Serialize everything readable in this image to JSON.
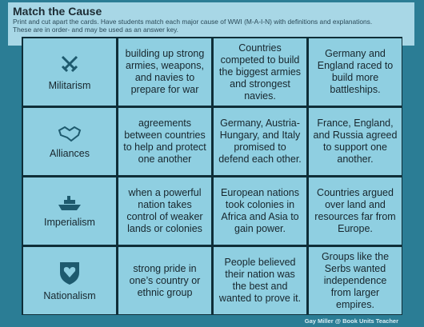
{
  "header": {
    "title": "Match the Cause",
    "instructions": [
      "Print and cut apart the cards. Have students match each major cause of WWI (M-A-I-N) with definitions and explanations.",
      "These are in order- and may be used as an answer key."
    ]
  },
  "rows": [
    {
      "label": "Militarism",
      "definition": "building up strong armies, weapons, and navies to prepare for war",
      "explanation": "Countries competed to build the biggest armies and strongest navies.",
      "example": "Germany and England raced to build more battleships."
    },
    {
      "label": "Alliances",
      "definition": "agreements between countries to help and protect one another",
      "explanation": "Germany, Austria-Hungary, and Italy promised to defend each other.",
      "example": "France, England, and Russia agreed to support one another."
    },
    {
      "label": "Imperialism",
      "definition": "when a powerful nation takes control of weaker lands or colonies",
      "explanation": "European nations took colonies in Africa and Asia to gain power.",
      "example": "Countries argued over land and resources far from Europe."
    },
    {
      "label": "Nationalism",
      "definition": "strong pride in one’s country or ethnic group",
      "explanation": "People believed their nation was the best and wanted to prove it.",
      "example": "Groups like the Serbs wanted independence from larger empires."
    }
  ],
  "footer": "Gay Miller @ Book Units Teacher"
}
